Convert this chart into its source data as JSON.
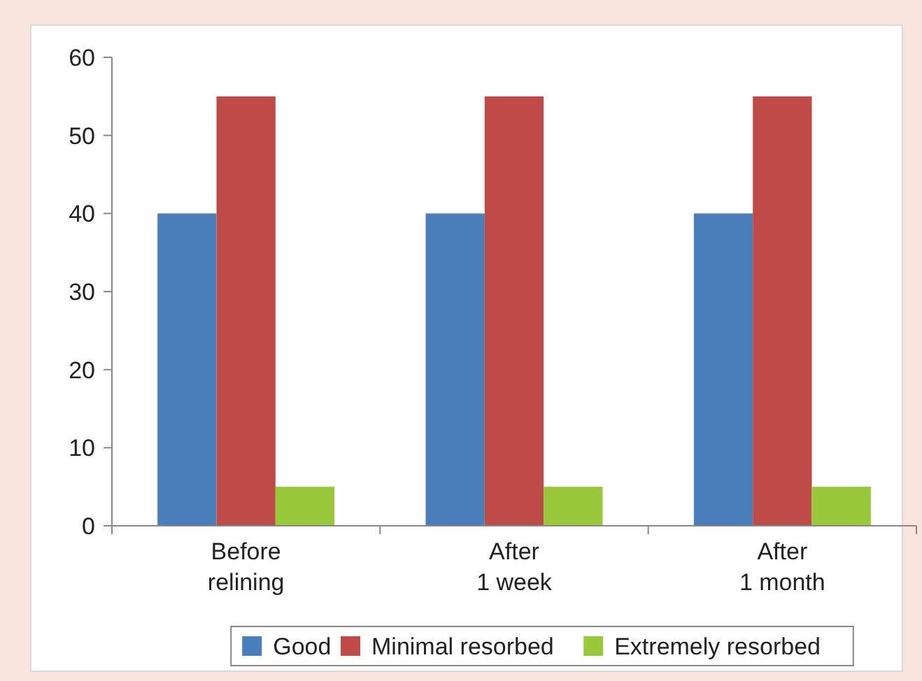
{
  "chart_data": {
    "type": "bar",
    "categories": [
      "Before relining",
      "After 1 week",
      "After 1 month"
    ],
    "series": [
      {
        "name": "Good",
        "color": "#4a7ebb",
        "values": [
          40,
          40,
          40
        ]
      },
      {
        "name": "Minimal resorbed",
        "color": "#be4b48",
        "values": [
          55,
          55,
          55
        ]
      },
      {
        "name": "Extremely resorbed",
        "color": "#98c83a",
        "values": [
          5,
          5,
          5
        ]
      }
    ],
    "ylim": [
      0,
      60
    ],
    "yticks": [
      0,
      10,
      20,
      30,
      40,
      50,
      60
    ],
    "grid": false,
    "legend": "bottom"
  }
}
